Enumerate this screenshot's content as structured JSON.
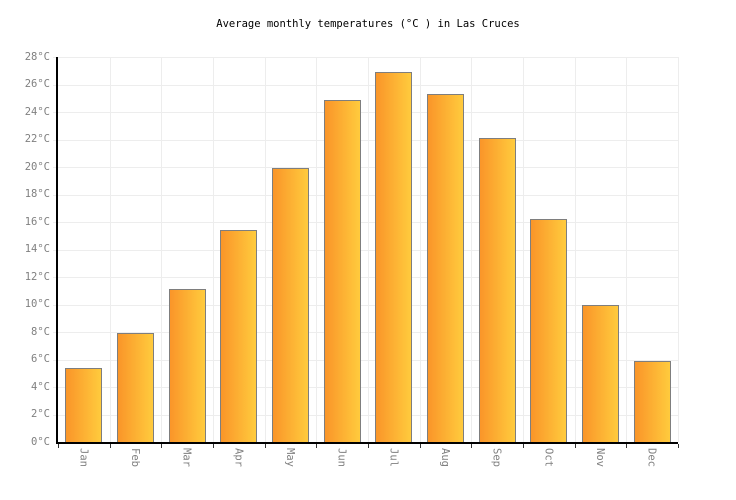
{
  "chart_data": {
    "type": "bar",
    "title": "Average monthly temperatures (°C ) in Las Cruces",
    "categories": [
      "Jan",
      "Feb",
      "Mar",
      "Apr",
      "May",
      "Jun",
      "Jul",
      "Aug",
      "Sep",
      "Oct",
      "Nov",
      "Dec"
    ],
    "values": [
      5.4,
      7.9,
      11.1,
      15.4,
      19.9,
      24.9,
      26.9,
      25.3,
      22.1,
      16.2,
      10.0,
      5.9
    ],
    "unit": "°C",
    "xlabel": "",
    "ylabel": "",
    "ylim": [
      0,
      28
    ],
    "ytick_step": 2,
    "ytick_suffix": "°C",
    "ytick_labels": [
      "0°C",
      "2°C",
      "4°C",
      "6°C",
      "8°C",
      "10°C",
      "12°C",
      "14°C",
      "16°C",
      "18°C",
      "20°C",
      "22°C",
      "24°C",
      "26°C",
      "28°C"
    ],
    "grid": true,
    "legend": false,
    "colors": {
      "bar_gradient_left": "#FA9529",
      "bar_gradient_right": "#FFCB3D",
      "bar_border": "#7E7E7E",
      "grid_line": "#EDEDED",
      "axis_line": "#000000",
      "tick_mark": "#333333",
      "tick_label": "#808080",
      "title_text": "#000000",
      "background": "#FFFFFF"
    }
  }
}
